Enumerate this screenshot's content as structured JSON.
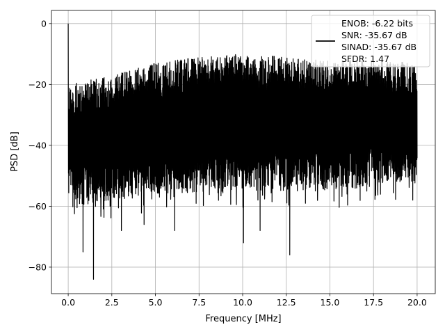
{
  "chart_data": {
    "type": "line",
    "title": "",
    "xlabel": "Frequency [MHz]",
    "ylabel": "PSD [dB]",
    "xlim": [
      -0.96,
      21.04
    ],
    "ylim": [
      -88.7,
      4.3
    ],
    "grid": true,
    "xticks": [
      0.0,
      2.5,
      5.0,
      7.5,
      10.0,
      12.5,
      15.0,
      17.5,
      20.0
    ],
    "xtick_labels": [
      "0.0",
      "2.5",
      "5.0",
      "7.5",
      "10.0",
      "12.5",
      "15.0",
      "17.5",
      "20.0"
    ],
    "yticks": [
      0,
      -20,
      -40,
      -60,
      -80
    ],
    "ytick_labels": [
      "0",
      "−20",
      "−40",
      "−60",
      "−80"
    ],
    "series": [
      {
        "name": "PSD",
        "color": "#000000",
        "x_range": [
          0,
          20
        ],
        "peak": {
          "x": 0,
          "y": 0
        },
        "upper_envelope": [
          [
            0.05,
            -20
          ],
          [
            2.5,
            -17
          ],
          [
            5,
            -13
          ],
          [
            7.5,
            -11
          ],
          [
            10,
            -10
          ],
          [
            12.5,
            -11
          ],
          [
            15,
            -12
          ],
          [
            17.5,
            -12
          ],
          [
            20,
            -13
          ]
        ],
        "lower_envelope": [
          [
            0.05,
            -58
          ],
          [
            1,
            -60
          ],
          [
            2.5,
            -58
          ],
          [
            5,
            -56
          ],
          [
            10,
            -55
          ],
          [
            15,
            -55
          ],
          [
            20,
            -52
          ]
        ],
        "dips": [
          [
            0.85,
            -75
          ],
          [
            1.45,
            -84
          ],
          [
            3.05,
            -68
          ],
          [
            4.35,
            -66
          ],
          [
            6.1,
            -68
          ],
          [
            10.05,
            -72
          ],
          [
            11.0,
            -68
          ],
          [
            12.7,
            -76
          ]
        ]
      }
    ],
    "legend": {
      "placement": "top-right",
      "entries": [
        "ENOB: -6.22 bits\nSNR: -35.67 dB\nSINAD: -35.67 dB\nSFDR: 1.47"
      ],
      "lines": [
        "ENOB: -6.22 bits",
        "SNR: -35.67 dB",
        "SINAD: -35.67 dB",
        "SFDR: 1.47"
      ]
    }
  }
}
